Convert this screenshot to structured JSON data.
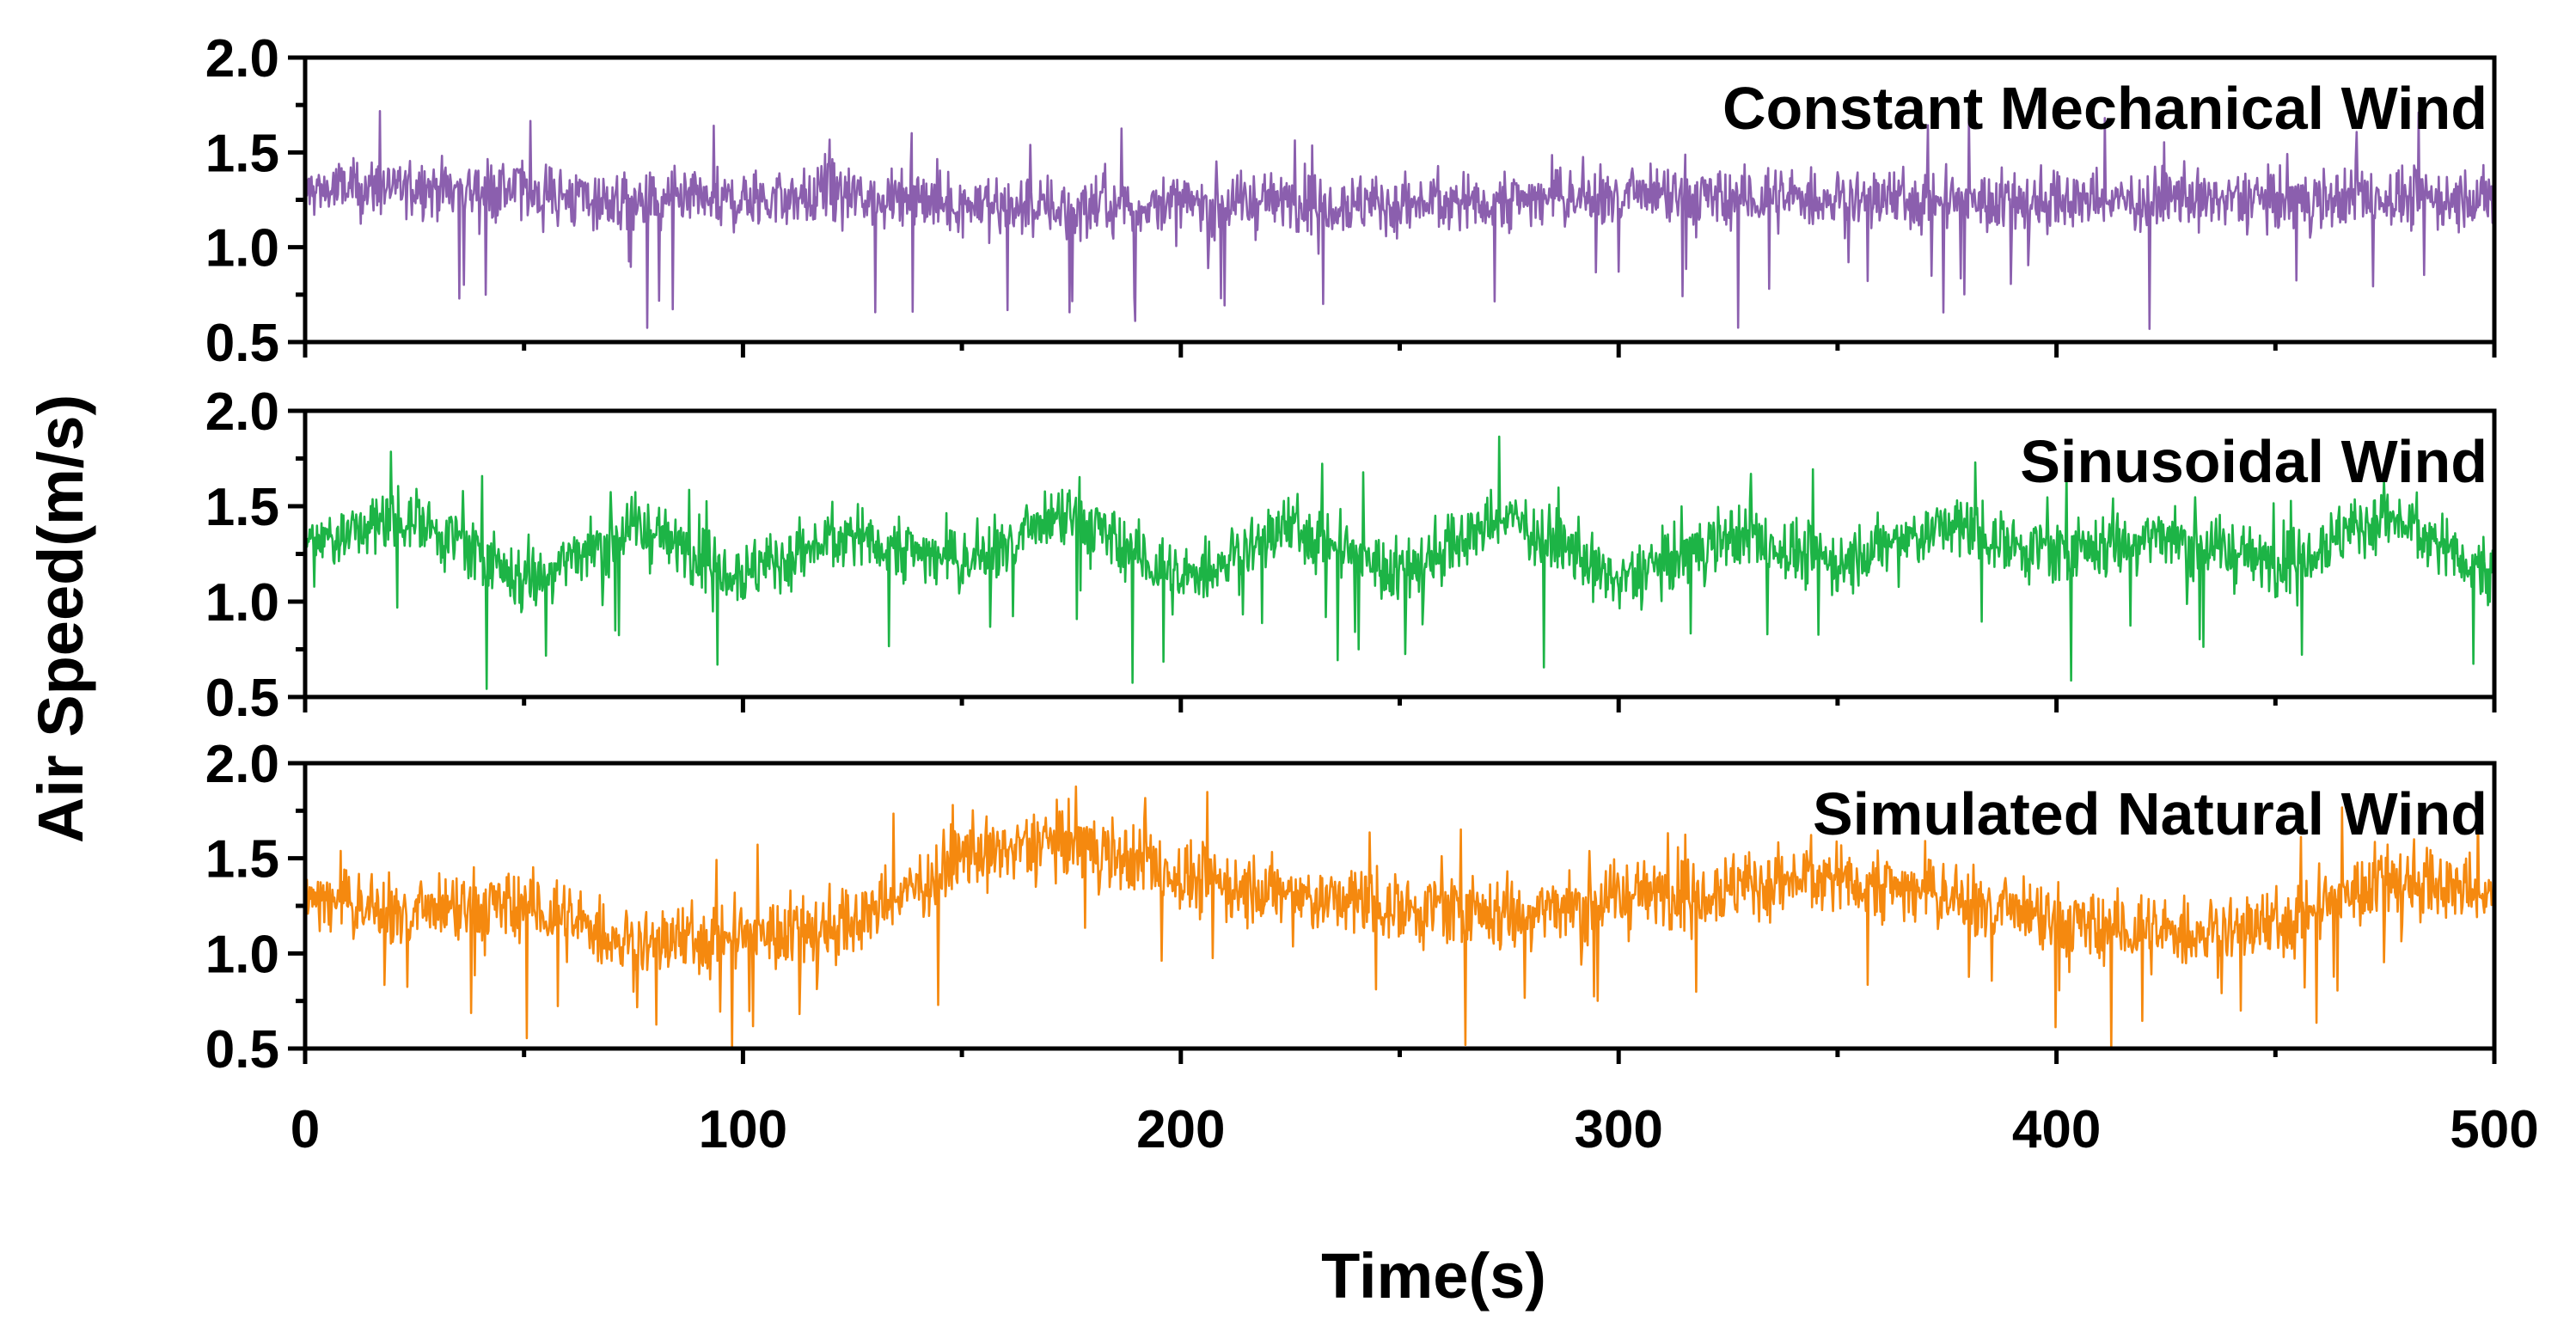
{
  "chart_data": {
    "type": "line",
    "title": "",
    "xlabel": "Time(s)",
    "ylabel": "Air Speed(m/s)",
    "xlim": [
      0,
      500
    ],
    "x_ticks": [
      0,
      100,
      200,
      300,
      400,
      500
    ],
    "x_tick_labels": [
      "0",
      "100",
      "200",
      "300",
      "400",
      "500"
    ],
    "grid": false,
    "legend": "none",
    "panels": [
      {
        "name": "Constant Mechanical Wind",
        "color": "#8B5FAE",
        "ylim": [
          0.5,
          2.0
        ],
        "y_ticks": [
          0.5,
          1.0,
          1.5,
          2.0
        ],
        "y_tick_labels": [
          "0.5",
          "1.0",
          "1.5",
          "2.0"
        ],
        "x": [
          0,
          25,
          50,
          75,
          100,
          125,
          150,
          175,
          200,
          225,
          250,
          275,
          300,
          325,
          350,
          375,
          400,
          425,
          450,
          475,
          500
        ],
        "values": [
          1.3,
          1.32,
          1.3,
          1.22,
          1.25,
          1.27,
          1.23,
          1.2,
          1.22,
          1.25,
          1.22,
          1.25,
          1.27,
          1.25,
          1.26,
          1.25,
          1.24,
          1.25,
          1.25,
          1.26,
          1.25
        ]
      },
      {
        "name": "Sinusoidal Wind",
        "color": "#1DB446",
        "ylim": [
          0.5,
          2.0
        ],
        "y_ticks": [
          0.5,
          1.0,
          1.5,
          2.0
        ],
        "y_tick_labels": [
          "0.5",
          "1.0",
          "1.5",
          "2.0"
        ],
        "x": [
          0,
          25,
          50,
          75,
          100,
          125,
          150,
          175,
          200,
          225,
          250,
          275,
          300,
          325,
          350,
          375,
          400,
          425,
          450,
          475,
          500
        ],
        "values": [
          1.3,
          1.45,
          1.1,
          1.4,
          1.15,
          1.35,
          1.2,
          1.45,
          1.1,
          1.4,
          1.15,
          1.45,
          1.1,
          1.35,
          1.2,
          1.4,
          1.25,
          1.35,
          1.2,
          1.45,
          1.15
        ]
      },
      {
        "name": "Simulated Natural Wind",
        "color": "#F5890F",
        "ylim": [
          0.5,
          2.0
        ],
        "y_ticks": [
          0.5,
          1.0,
          1.5,
          2.0
        ],
        "y_tick_labels": [
          "0.5",
          "1.0",
          "1.5",
          "2.0"
        ],
        "x": [
          0,
          25,
          50,
          75,
          100,
          125,
          150,
          175,
          200,
          225,
          250,
          275,
          300,
          325,
          350,
          375,
          400,
          425,
          450,
          475,
          500
        ],
        "values": [
          1.3,
          1.2,
          1.25,
          1.05,
          1.1,
          1.15,
          1.5,
          1.6,
          1.4,
          1.3,
          1.25,
          1.2,
          1.3,
          1.35,
          1.4,
          1.3,
          1.15,
          1.1,
          1.15,
          1.4,
          1.3
        ]
      }
    ]
  }
}
